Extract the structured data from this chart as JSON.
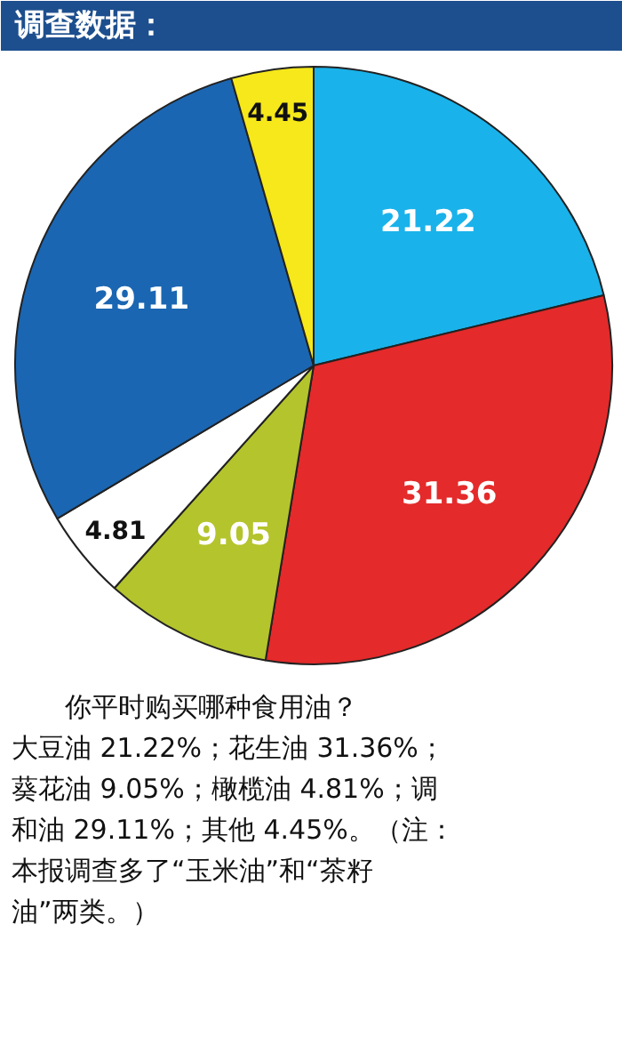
{
  "chart_data": {
    "type": "pie",
    "title": "调查数据：",
    "categories": [
      null,
      null,
      null,
      null,
      null,
      null
    ],
    "values": [
      21.22,
      31.36,
      9.05,
      4.81,
      29.11,
      4.45
    ],
    "colors": [
      "#1ab2ea",
      "#e42a2a",
      "#b4c42c",
      "#ffffff",
      "#1b66b2",
      "#f6e81a"
    ],
    "data_labels": true,
    "annotations": [
      "　　你平时购买哪种食用油？",
      "大豆油 21.22%；花生油 31.36%；",
      "葵花油 9.05%；橄榄油 4.81%；调",
      "和油 29.11%；其他 4.45%。（注：",
      "本报调查多了“玉米油”和“茶籽",
      "油”两类。）"
    ]
  }
}
